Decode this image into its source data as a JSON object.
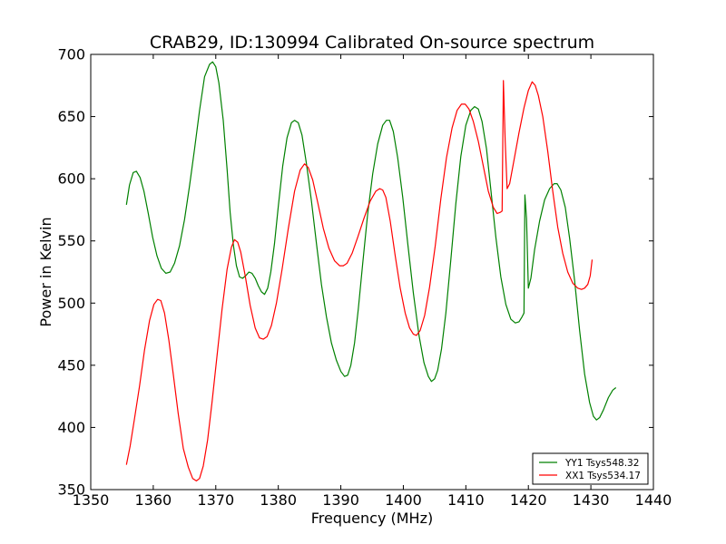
{
  "chart_data": {
    "type": "line",
    "title": "CRAB29, ID:130994 Calibrated On-source spectrum",
    "xlabel": "Frequency (MHz)",
    "ylabel": "Power in Kelvin",
    "xlim": [
      1350,
      1440
    ],
    "ylim": [
      350,
      700
    ],
    "xticks": [
      1350,
      1360,
      1370,
      1380,
      1390,
      1400,
      1410,
      1420,
      1430,
      1440
    ],
    "yticks": [
      350,
      400,
      450,
      500,
      550,
      600,
      650,
      700
    ],
    "grid": false,
    "legend_position": "lower-right",
    "series": [
      {
        "name": "YY1 Tsys548.32",
        "color": "#008000",
        "points": [
          [
            1355.7,
            579
          ],
          [
            1356.2,
            595
          ],
          [
            1356.8,
            605
          ],
          [
            1357.3,
            606
          ],
          [
            1357.9,
            601
          ],
          [
            1358.5,
            590
          ],
          [
            1359.2,
            572
          ],
          [
            1359.9,
            553
          ],
          [
            1360.6,
            538
          ],
          [
            1361.3,
            528
          ],
          [
            1362.0,
            524
          ],
          [
            1362.7,
            525
          ],
          [
            1363.4,
            532
          ],
          [
            1364.2,
            546
          ],
          [
            1365.0,
            567
          ],
          [
            1365.8,
            594
          ],
          [
            1366.6,
            624
          ],
          [
            1367.4,
            655
          ],
          [
            1368.2,
            682
          ],
          [
            1369.0,
            692
          ],
          [
            1369.5,
            694
          ],
          [
            1370.0,
            690
          ],
          [
            1370.5,
            677
          ],
          [
            1371.2,
            647
          ],
          [
            1371.8,
            608
          ],
          [
            1372.3,
            573
          ],
          [
            1372.8,
            547
          ],
          [
            1373.3,
            530
          ],
          [
            1373.8,
            521
          ],
          [
            1374.3,
            520
          ],
          [
            1374.8,
            522
          ],
          [
            1375.3,
            525
          ],
          [
            1375.8,
            524
          ],
          [
            1376.3,
            520
          ],
          [
            1376.8,
            514
          ],
          [
            1377.3,
            509
          ],
          [
            1377.8,
            507
          ],
          [
            1378.3,
            512
          ],
          [
            1378.8,
            525
          ],
          [
            1379.4,
            548
          ],
          [
            1380.0,
            578
          ],
          [
            1380.7,
            610
          ],
          [
            1381.4,
            633
          ],
          [
            1382.1,
            645
          ],
          [
            1382.6,
            647
          ],
          [
            1383.2,
            645
          ],
          [
            1383.8,
            635
          ],
          [
            1384.5,
            612
          ],
          [
            1385.3,
            582
          ],
          [
            1386.1,
            548
          ],
          [
            1386.9,
            515
          ],
          [
            1387.7,
            489
          ],
          [
            1388.5,
            468
          ],
          [
            1389.3,
            454
          ],
          [
            1390.0,
            445
          ],
          [
            1390.6,
            441
          ],
          [
            1391.1,
            442
          ],
          [
            1391.6,
            450
          ],
          [
            1392.2,
            468
          ],
          [
            1392.8,
            495
          ],
          [
            1393.5,
            532
          ],
          [
            1394.3,
            572
          ],
          [
            1395.1,
            604
          ],
          [
            1395.9,
            628
          ],
          [
            1396.7,
            643
          ],
          [
            1397.3,
            647
          ],
          [
            1397.8,
            647
          ],
          [
            1398.4,
            638
          ],
          [
            1399.1,
            617
          ],
          [
            1399.9,
            585
          ],
          [
            1400.7,
            548
          ],
          [
            1401.6,
            508
          ],
          [
            1402.5,
            474
          ],
          [
            1403.3,
            452
          ],
          [
            1404.0,
            441
          ],
          [
            1404.5,
            437
          ],
          [
            1405.0,
            439
          ],
          [
            1405.5,
            446
          ],
          [
            1406.1,
            463
          ],
          [
            1406.8,
            492
          ],
          [
            1407.6,
            535
          ],
          [
            1408.4,
            580
          ],
          [
            1409.2,
            618
          ],
          [
            1410.0,
            643
          ],
          [
            1410.8,
            655
          ],
          [
            1411.4,
            658
          ],
          [
            1412.0,
            656
          ],
          [
            1412.6,
            646
          ],
          [
            1413.3,
            624
          ],
          [
            1414.0,
            591
          ],
          [
            1414.8,
            553
          ],
          [
            1415.6,
            521
          ],
          [
            1416.4,
            499
          ],
          [
            1417.2,
            487
          ],
          [
            1417.9,
            484
          ],
          [
            1418.5,
            485
          ],
          [
            1419.0,
            489
          ],
          [
            1419.3,
            492
          ],
          [
            1419.45,
            587
          ],
          [
            1419.7,
            568
          ],
          [
            1420.0,
            512
          ],
          [
            1420.4,
            520
          ],
          [
            1421.0,
            543
          ],
          [
            1421.8,
            566
          ],
          [
            1422.6,
            583
          ],
          [
            1423.4,
            592
          ],
          [
            1424.1,
            596
          ],
          [
            1424.6,
            596
          ],
          [
            1425.2,
            591
          ],
          [
            1425.9,
            577
          ],
          [
            1426.6,
            552
          ],
          [
            1427.4,
            518
          ],
          [
            1428.2,
            478
          ],
          [
            1429.0,
            443
          ],
          [
            1429.8,
            420
          ],
          [
            1430.4,
            409
          ],
          [
            1430.9,
            406
          ],
          [
            1431.4,
            408
          ],
          [
            1432.0,
            414
          ],
          [
            1432.8,
            424
          ],
          [
            1433.5,
            430
          ],
          [
            1434.0,
            432
          ]
        ]
      },
      {
        "name": "XX1 Tsys534.17",
        "color": "#ff0000",
        "points": [
          [
            1355.7,
            370
          ],
          [
            1356.3,
            385
          ],
          [
            1357.0,
            407
          ],
          [
            1357.8,
            433
          ],
          [
            1358.6,
            462
          ],
          [
            1359.4,
            486
          ],
          [
            1360.1,
            499
          ],
          [
            1360.7,
            503
          ],
          [
            1361.2,
            502
          ],
          [
            1361.8,
            492
          ],
          [
            1362.5,
            470
          ],
          [
            1363.2,
            443
          ],
          [
            1364.0,
            411
          ],
          [
            1364.8,
            383
          ],
          [
            1365.6,
            368
          ],
          [
            1366.3,
            359
          ],
          [
            1366.9,
            357
          ],
          [
            1367.4,
            359
          ],
          [
            1368.0,
            369
          ],
          [
            1368.7,
            390
          ],
          [
            1369.4,
            420
          ],
          [
            1370.2,
            458
          ],
          [
            1371.0,
            495
          ],
          [
            1371.8,
            527
          ],
          [
            1372.5,
            545
          ],
          [
            1373.0,
            551
          ],
          [
            1373.5,
            549
          ],
          [
            1374.0,
            541
          ],
          [
            1374.7,
            522
          ],
          [
            1375.5,
            498
          ],
          [
            1376.3,
            480
          ],
          [
            1377.0,
            472
          ],
          [
            1377.6,
            471
          ],
          [
            1378.2,
            473
          ],
          [
            1378.9,
            482
          ],
          [
            1379.7,
            500
          ],
          [
            1380.6,
            527
          ],
          [
            1381.6,
            560
          ],
          [
            1382.6,
            590
          ],
          [
            1383.5,
            607
          ],
          [
            1384.2,
            612
          ],
          [
            1384.8,
            609
          ],
          [
            1385.5,
            599
          ],
          [
            1386.3,
            581
          ],
          [
            1387.2,
            560
          ],
          [
            1388.1,
            544
          ],
          [
            1389.0,
            534
          ],
          [
            1389.8,
            530
          ],
          [
            1390.4,
            530
          ],
          [
            1391.0,
            532
          ],
          [
            1391.8,
            540
          ],
          [
            1392.7,
            553
          ],
          [
            1393.7,
            568
          ],
          [
            1394.7,
            582
          ],
          [
            1395.6,
            590
          ],
          [
            1396.2,
            592
          ],
          [
            1396.7,
            591
          ],
          [
            1397.2,
            585
          ],
          [
            1397.9,
            566
          ],
          [
            1398.7,
            538
          ],
          [
            1399.5,
            512
          ],
          [
            1400.3,
            492
          ],
          [
            1401.0,
            480
          ],
          [
            1401.6,
            475
          ],
          [
            1402.1,
            474
          ],
          [
            1402.7,
            478
          ],
          [
            1403.4,
            490
          ],
          [
            1404.2,
            513
          ],
          [
            1405.1,
            546
          ],
          [
            1406.0,
            584
          ],
          [
            1406.9,
            617
          ],
          [
            1407.8,
            641
          ],
          [
            1408.6,
            655
          ],
          [
            1409.3,
            660
          ],
          [
            1409.9,
            660
          ],
          [
            1410.5,
            656
          ],
          [
            1411.2,
            646
          ],
          [
            1412.0,
            630
          ],
          [
            1412.8,
            610
          ],
          [
            1413.6,
            590
          ],
          [
            1414.4,
            577
          ],
          [
            1415.0,
            572
          ],
          [
            1415.5,
            573
          ],
          [
            1415.8,
            574
          ],
          [
            1416.0,
            679
          ],
          [
            1416.3,
            630
          ],
          [
            1416.6,
            592
          ],
          [
            1417.0,
            596
          ],
          [
            1417.7,
            615
          ],
          [
            1418.5,
            637
          ],
          [
            1419.3,
            657
          ],
          [
            1420.0,
            671
          ],
          [
            1420.6,
            678
          ],
          [
            1421.1,
            675
          ],
          [
            1421.6,
            667
          ],
          [
            1422.3,
            650
          ],
          [
            1423.1,
            622
          ],
          [
            1423.9,
            590
          ],
          [
            1424.7,
            561
          ],
          [
            1425.5,
            540
          ],
          [
            1426.3,
            525
          ],
          [
            1427.1,
            516
          ],
          [
            1427.9,
            512
          ],
          [
            1428.5,
            511
          ],
          [
            1429.0,
            512
          ],
          [
            1429.5,
            515
          ],
          [
            1429.9,
            522
          ],
          [
            1430.2,
            535
          ]
        ]
      }
    ]
  }
}
